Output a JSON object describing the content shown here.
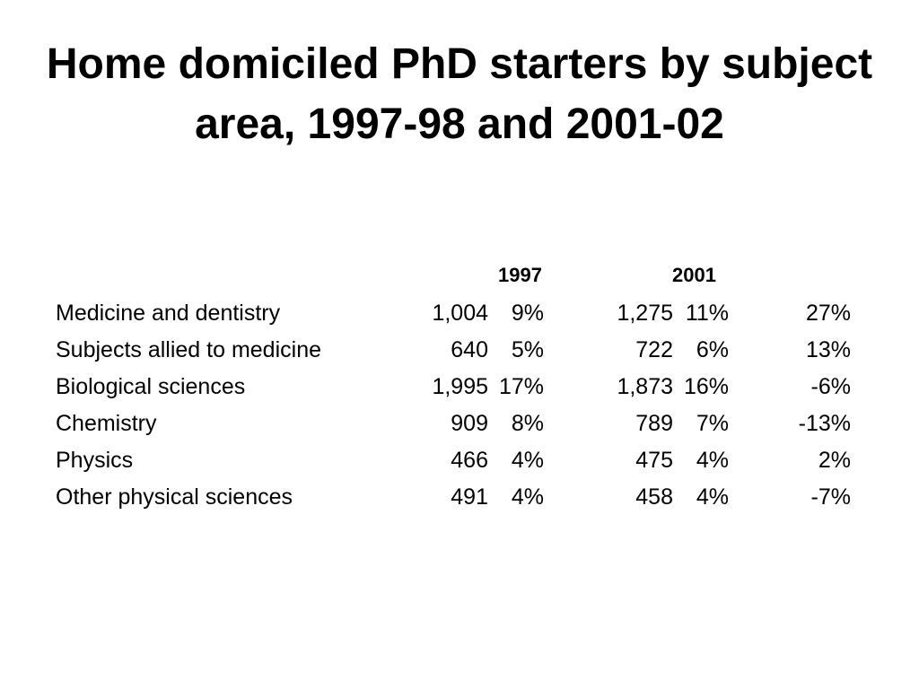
{
  "title": "Home domiciled PhD starters by subject area, 1997-98 and 2001-02",
  "table": {
    "headers": [
      "1997",
      "2001"
    ],
    "rows": [
      {
        "subject": "Medicine and dentistry",
        "n1997": "1,004",
        "p1997": "9%",
        "n2001": "1,275",
        "p2001": "11%",
        "change": "27%"
      },
      {
        "subject": "Subjects allied to medicine",
        "n1997": "640",
        "p1997": "5%",
        "n2001": "722",
        "p2001": "6%",
        "change": "13%"
      },
      {
        "subject": "Biological sciences",
        "n1997": "1,995",
        "p1997": "17%",
        "n2001": "1,873",
        "p2001": "16%",
        "change": "-6%"
      },
      {
        "subject": "Chemistry",
        "n1997": "909",
        "p1997": "8%",
        "n2001": "789",
        "p2001": "7%",
        "change": "-13%"
      },
      {
        "subject": "Physics",
        "n1997": "466",
        "p1997": "4%",
        "n2001": "475",
        "p2001": "4%",
        "change": "2%"
      },
      {
        "subject": "Other physical sciences",
        "n1997": "491",
        "p1997": "4%",
        "n2001": "458",
        "p2001": "4%",
        "change": "-7%"
      }
    ]
  }
}
